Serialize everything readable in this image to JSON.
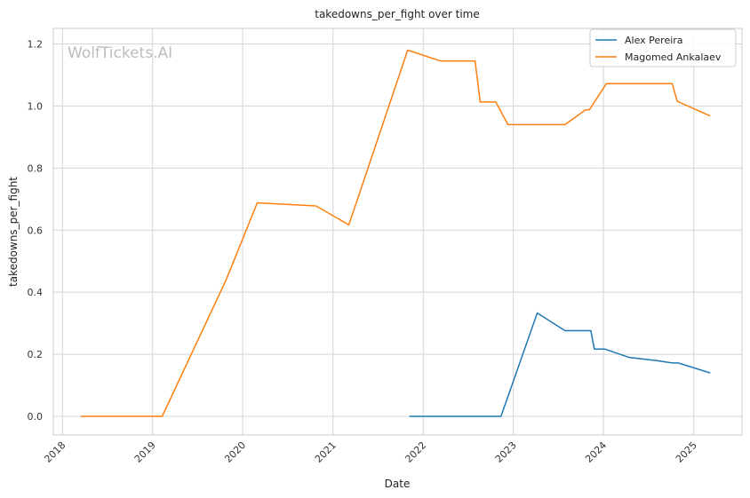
{
  "watermark": "WolfTickets.AI",
  "chart_data": {
    "type": "line",
    "title": "takedowns_per_fight over time",
    "xlabel": "Date",
    "ylabel": "takedowns_per_fight",
    "xlim": [
      "2017-11-25",
      "2025-07-15"
    ],
    "ylim": [
      -0.06,
      1.25
    ],
    "x_ticks": [
      "2018",
      "2019",
      "2020",
      "2021",
      "2022",
      "2023",
      "2024",
      "2025"
    ],
    "y_ticks": [
      "0.0",
      "0.2",
      "0.4",
      "0.6",
      "0.8",
      "1.0",
      "1.2"
    ],
    "grid": true,
    "legend_position": "top-right",
    "series": [
      {
        "name": "Alex Pereira",
        "color": "#1f77b4",
        "points": [
          [
            "2021-11-06",
            0.0
          ],
          [
            "2022-11-12",
            0.0
          ],
          [
            "2023-04-08",
            0.333
          ],
          [
            "2023-07-29",
            0.276
          ],
          [
            "2023-11-11",
            0.276
          ],
          [
            "2023-11-25",
            0.217
          ],
          [
            "2024-01-06",
            0.217
          ],
          [
            "2024-04-13",
            0.19
          ],
          [
            "2024-08-01",
            0.18
          ],
          [
            "2024-10-05",
            0.172
          ],
          [
            "2024-10-30",
            0.172
          ],
          [
            "2025-03-08",
            0.14
          ]
        ]
      },
      {
        "name": "Magomed Ankalaev",
        "color": "#ff7f0e",
        "points": [
          [
            "2018-03-17",
            0.0
          ],
          [
            "2019-02-09",
            0.0
          ],
          [
            "2019-10-26",
            0.44
          ],
          [
            "2020-02-29",
            0.688
          ],
          [
            "2020-10-24",
            0.678
          ],
          [
            "2021-03-06",
            0.617
          ],
          [
            "2021-10-30",
            1.18
          ],
          [
            "2022-03-12",
            1.145
          ],
          [
            "2022-07-30",
            1.145
          ],
          [
            "2022-08-20",
            1.013
          ],
          [
            "2022-10-22",
            1.013
          ],
          [
            "2022-12-10",
            0.94
          ],
          [
            "2023-07-29",
            0.94
          ],
          [
            "2023-10-21",
            0.988
          ],
          [
            "2023-11-05",
            0.988
          ],
          [
            "2024-01-13",
            1.072
          ],
          [
            "2024-10-05",
            1.072
          ],
          [
            "2024-10-26",
            1.015
          ],
          [
            "2025-03-08",
            0.968
          ]
        ]
      }
    ]
  }
}
